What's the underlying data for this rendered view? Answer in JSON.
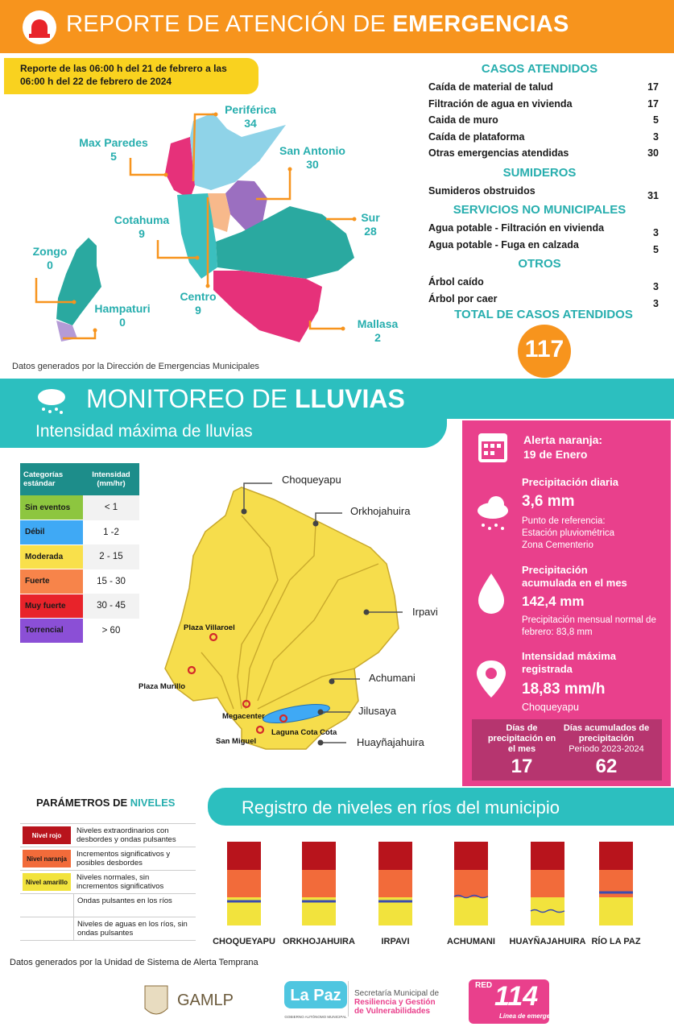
{
  "header": {
    "title_light": "REPORTE DE ATENCIÓN DE",
    "title_bold": "EMERGENCIAS"
  },
  "period": "Reporte de las  06:00 h del 21 de febrero a las 06:00 h del 22 de febrero de 2024",
  "zones_map": {
    "zones": [
      {
        "name": "Periférica",
        "value": 34
      },
      {
        "name": "Max Paredes",
        "value": 5
      },
      {
        "name": "San Antonio",
        "value": 30
      },
      {
        "name": "Cotahuma",
        "value": 9
      },
      {
        "name": "Sur",
        "value": 28
      },
      {
        "name": "Zongo",
        "value": 0
      },
      {
        "name": "Centro",
        "value": 9
      },
      {
        "name": "Hampaturi",
        "value": 0
      },
      {
        "name": "Mallasa",
        "value": 2
      }
    ],
    "source": "Datos generados por la Dirección de Emergencias Municipales"
  },
  "cases": {
    "sections": [
      {
        "title": "CASOS ATENDIDOS",
        "items": [
          {
            "label": "Caída de material de talud",
            "value": 17
          },
          {
            "label": "Filtración de agua en vivienda",
            "value": 17
          },
          {
            "label": "Caida de muro",
            "value": 5
          },
          {
            "label": "Caída de plataforma",
            "value": 3
          },
          {
            "label": "Otras emergencias atendidas",
            "value": 30
          }
        ]
      },
      {
        "title": "SUMIDEROS",
        "items": [
          {
            "label": "Sumideros obstruidos",
            "value": 31
          }
        ]
      },
      {
        "title": "SERVICIOS NO MUNICIPALES",
        "items": [
          {
            "label": "Agua potable - Filtración en vivienda",
            "value": 3
          },
          {
            "label": "Agua potable - Fuga en calzada",
            "value": 5
          }
        ]
      },
      {
        "title": "OTROS",
        "items": [
          {
            "label": "Árbol caído",
            "value": 3
          },
          {
            "label": "Árbol por caer",
            "value": 3
          }
        ]
      }
    ],
    "total_label": "TOTAL DE CASOS ATENDIDOS",
    "total": 117
  },
  "rain": {
    "title_light": "MONITOREO DE",
    "title_bold": "LLUVIAS",
    "subtitle": "Intensidad máxima de lluvias",
    "table": {
      "header": [
        "Categorías estándar",
        "Intensidad (mm/hr)"
      ],
      "rows": [
        {
          "category": "Sin eventos",
          "range": "< 1",
          "color": "#8dc63f"
        },
        {
          "category": "Débil",
          "range": "1 -2",
          "color": "#3fa9f5"
        },
        {
          "category": "Moderada",
          "range": "2 - 15",
          "color": "#f9e04b"
        },
        {
          "category": "Fuerte",
          "range": "15 - 30",
          "color": "#f7844a"
        },
        {
          "category": "Muy fuerte",
          "range": "30 - 45",
          "color": "#e8232a"
        },
        {
          "category": "Torrencial",
          "range": "> 60",
          "color": "#8b4fd6"
        }
      ]
    },
    "rivers": [
      "Choqueyapu",
      "Orkhojahuira",
      "Irpavi",
      "Achumani",
      "Jilusaya",
      "Huayñajahuira"
    ],
    "places": [
      "Plaza Villaroel",
      "Plaza Murillo",
      "Megacenter",
      "Laguna Cota Cota",
      "San Miguel"
    ],
    "panel": {
      "alert_title": "Alerta naranja:",
      "alert_date": "19 de Enero",
      "daily_title": "Precipitación diaria",
      "daily_value": "3,6 mm",
      "reference": [
        "Punto de referencia:",
        "Estación pluviométrica",
        "Zona Cementerio"
      ],
      "accum_title": "Precipitación acumulada en el mes",
      "accum_value": "142,4 mm",
      "accum_normal": "Precipitación mensual normal de febrero: 83,8 mm",
      "max_title": "Intensidad máxima registrada",
      "max_value": "18,83 mm/h",
      "max_place": "Choqueyapu",
      "days_month_label": "Días de precipitación en el mes",
      "days_month": 17,
      "days_accum_label": "Días acumulados de precipitación",
      "days_accum_period": "Periodo 2023-2024",
      "days_accum": 62
    }
  },
  "levels": {
    "title_light": "PARÁMETROS DE",
    "title_bold": "NIVELES",
    "legend": [
      {
        "tag": "Nivel rojo",
        "text": "Niveles extraordinarios con desbordes y ondas pulsantes",
        "color": "#b8141c"
      },
      {
        "tag": "Nivel  naranja",
        "text": "Incrementos significativos y posibles desbordes",
        "color": "#f26b3a"
      },
      {
        "tag": "Nivel amarillo",
        "text": "Niveles normales, sin incrementos significativos",
        "color": "#f2e33d"
      },
      {
        "symbol": "wave",
        "text": "Ondas pulsantes en los ríos"
      },
      {
        "symbol": "flat",
        "text": "Niveles de aguas en los ríos, sin ondas pulsantes"
      }
    ]
  },
  "river_levels": {
    "title": "Registro de niveles en ríos del municipio",
    "rivers": [
      {
        "name": "CHOQUEYAPU",
        "indicator": "flat",
        "zone": "amarillo"
      },
      {
        "name": "ORKHOJAHUIRA",
        "indicator": "flat",
        "zone": "amarillo"
      },
      {
        "name": "IRPAVI",
        "indicator": "flat",
        "zone": "amarillo"
      },
      {
        "name": "ACHUMANI",
        "indicator": "wave",
        "zone": "borde"
      },
      {
        "name": "HUAYÑAJAHUIRA",
        "indicator": "wave",
        "zone": "amarillo-medio"
      },
      {
        "name": "RÍO LA PAZ",
        "indicator": "flat",
        "zone": "naranja"
      }
    ]
  },
  "footer": {
    "source": "Datos generados por la Unidad de Sistema de Alerta Temprana",
    "gamlp": "GAMLP",
    "lapaz": "La Paz",
    "lapaz_sub": "GOBIERNO AUTÓNOMO MUNICIPAL",
    "secretaria": [
      "Secretaría Municipal de",
      "Resiliencia y Gestión",
      "de Vulnerabilidades"
    ],
    "red": "RED",
    "red_number": "114",
    "red_sub": "Línea de emergencia"
  }
}
